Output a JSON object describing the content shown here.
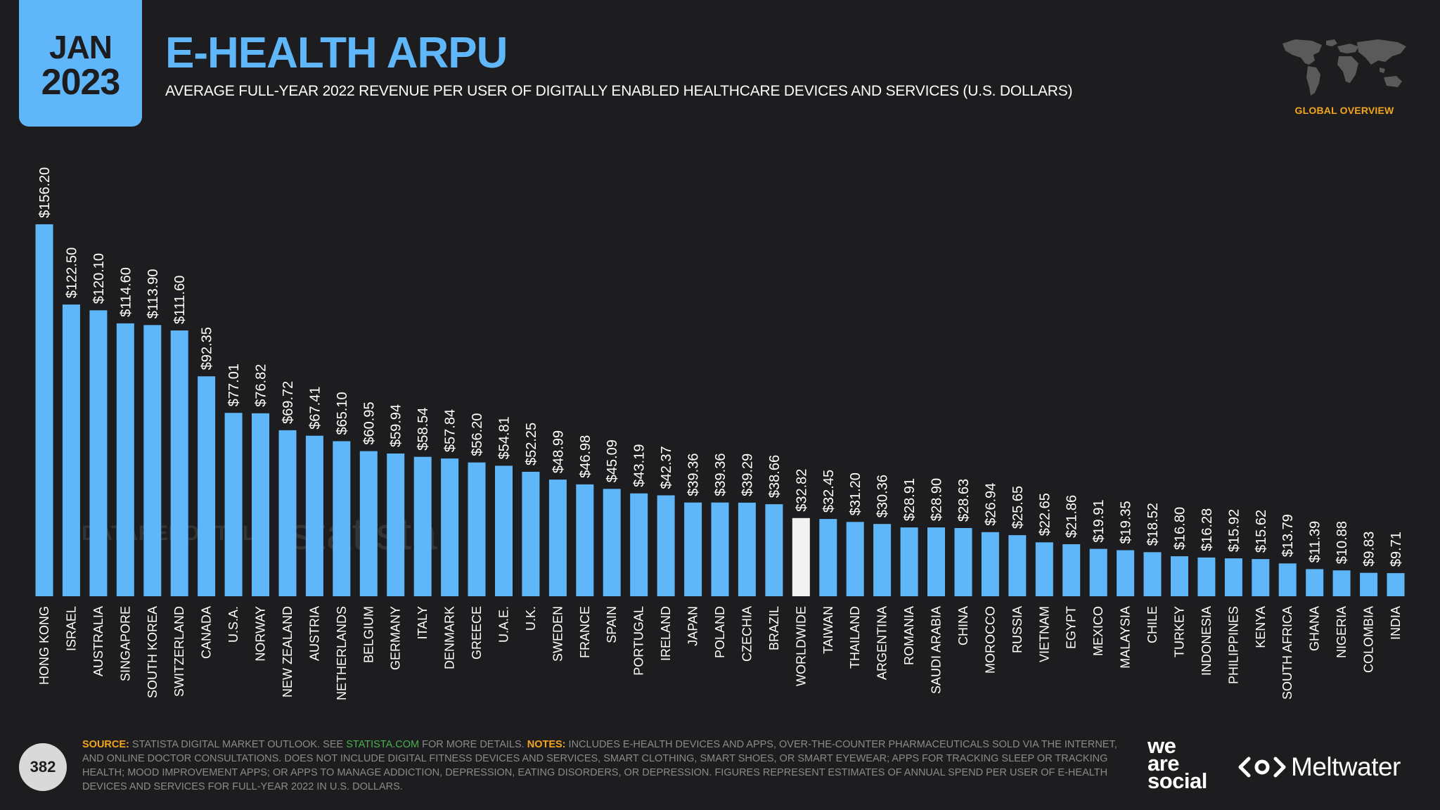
{
  "header": {
    "month": "JAN",
    "year": "2023",
    "title": "E-HEALTH ARPU",
    "subtitle": "AVERAGE FULL-YEAR 2022 REVENUE PER USER OF DIGITALLY ENABLED HEALTHCARE DEVICES AND SERVICES (U.S. DOLLARS)",
    "section_label": "GLOBAL OVERVIEW"
  },
  "chart_data": {
    "type": "bar",
    "title": "E-HEALTH ARPU",
    "ylabel": "",
    "xlabel": "",
    "ylim": [
      0,
      160
    ],
    "grid": false,
    "bar_color": "#5fb6f8",
    "highlight_color": "#f2f2f2",
    "highlight_category": "WORLDWIDE",
    "categories": [
      "HONG KONG",
      "ISRAEL",
      "AUSTRALIA",
      "SINGAPORE",
      "SOUTH KOREA",
      "SWITZERLAND",
      "CANADA",
      "U.S.A.",
      "NORWAY",
      "NEW ZEALAND",
      "AUSTRIA",
      "NETHERLANDS",
      "BELGIUM",
      "GERMANY",
      "ITALY",
      "DENMARK",
      "GREECE",
      "U.A.E.",
      "U.K.",
      "SWEDEN",
      "FRANCE",
      "SPAIN",
      "PORTUGAL",
      "IRELAND",
      "JAPAN",
      "POLAND",
      "CZECHIA",
      "BRAZIL",
      "WORLDWIDE",
      "TAIWAN",
      "THAILAND",
      "ARGENTINA",
      "ROMANIA",
      "SAUDI ARABIA",
      "CHINA",
      "MOROCCO",
      "RUSSIA",
      "VIETNAM",
      "EGYPT",
      "MEXICO",
      "MALAYSIA",
      "CHILE",
      "TURKEY",
      "INDONESIA",
      "PHILIPPINES",
      "KENYA",
      "SOUTH AFRICA",
      "GHANA",
      "NIGERIA",
      "COLOMBIA",
      "INDIA"
    ],
    "values": [
      156.2,
      122.5,
      120.1,
      114.6,
      113.9,
      111.6,
      92.35,
      77.01,
      76.82,
      69.72,
      67.41,
      65.1,
      60.95,
      59.94,
      58.54,
      57.84,
      56.2,
      54.81,
      52.25,
      48.99,
      46.98,
      45.09,
      43.19,
      42.37,
      39.36,
      39.36,
      39.29,
      38.66,
      32.82,
      32.45,
      31.2,
      30.36,
      28.91,
      28.9,
      28.63,
      26.94,
      25.65,
      22.65,
      21.86,
      19.91,
      19.35,
      18.52,
      16.8,
      16.28,
      15.92,
      15.62,
      13.79,
      11.39,
      10.88,
      9.83,
      9.71
    ],
    "value_labels": [
      "$156.20",
      "$122.50",
      "$120.10",
      "$114.60",
      "$113.90",
      "$111.60",
      "$92.35",
      "$77.01",
      "$76.82",
      "$69.72",
      "$67.41",
      "$65.10",
      "$60.95",
      "$59.94",
      "$58.54",
      "$57.84",
      "$56.20",
      "$54.81",
      "$52.25",
      "$48.99",
      "$46.98",
      "$45.09",
      "$43.19",
      "$42.37",
      "$39.36",
      "$39.36",
      "$39.29",
      "$38.66",
      "$32.82",
      "$32.45",
      "$31.20",
      "$30.36",
      "$28.91",
      "$28.90",
      "$28.63",
      "$26.94",
      "$25.65",
      "$22.65",
      "$21.86",
      "$19.91",
      "$19.35",
      "$18.52",
      "$16.80",
      "$16.28",
      "$15.92",
      "$15.62",
      "$13.79",
      "$11.39",
      "$10.88",
      "$9.83",
      "$9.71"
    ]
  },
  "watermarks": {
    "datareportal": "DATAREPORTAL",
    "statista": "statista"
  },
  "footer": {
    "page_number": "382",
    "source_label": "SOURCE:",
    "source_text": " STATISTA DIGITAL MARKET OUTLOOK. SEE ",
    "source_link": "STATISTA.COM",
    "source_text_2": " FOR MORE DETAILS. ",
    "notes_label": "NOTES:",
    "notes_text": " INCLUDES E-HEALTH DEVICES AND APPS, OVER-THE-COUNTER PHARMACEUTICALS SOLD VIA THE INTERNET, AND ONLINE DOCTOR CONSULTATIONS. DOES NOT INCLUDE DIGITAL FITNESS DEVICES AND SERVICES, SMART CLOTHING, SMART SHOES, OR SMART EYEWEAR; APPS FOR TRACKING SLEEP OR TRACKING HEALTH; MOOD IMPROVEMENT APPS; OR APPS TO MANAGE ADDICTION, DEPRESSION, EATING DISORDERS, OR DEPRESSION. FIGURES REPRESENT ESTIMATES OF ANNUAL SPEND PER USER OF E-HEALTH DEVICES AND SERVICES FOR FULL-YEAR 2022 IN U.S. DOLLARS.",
    "brand_we": "we",
    "brand_are": "are",
    "brand_social": "social",
    "brand_meltwater": "Meltwater"
  },
  "icons": {
    "map": "world-map-icon",
    "meltwater": "meltwater-logo-icon"
  }
}
